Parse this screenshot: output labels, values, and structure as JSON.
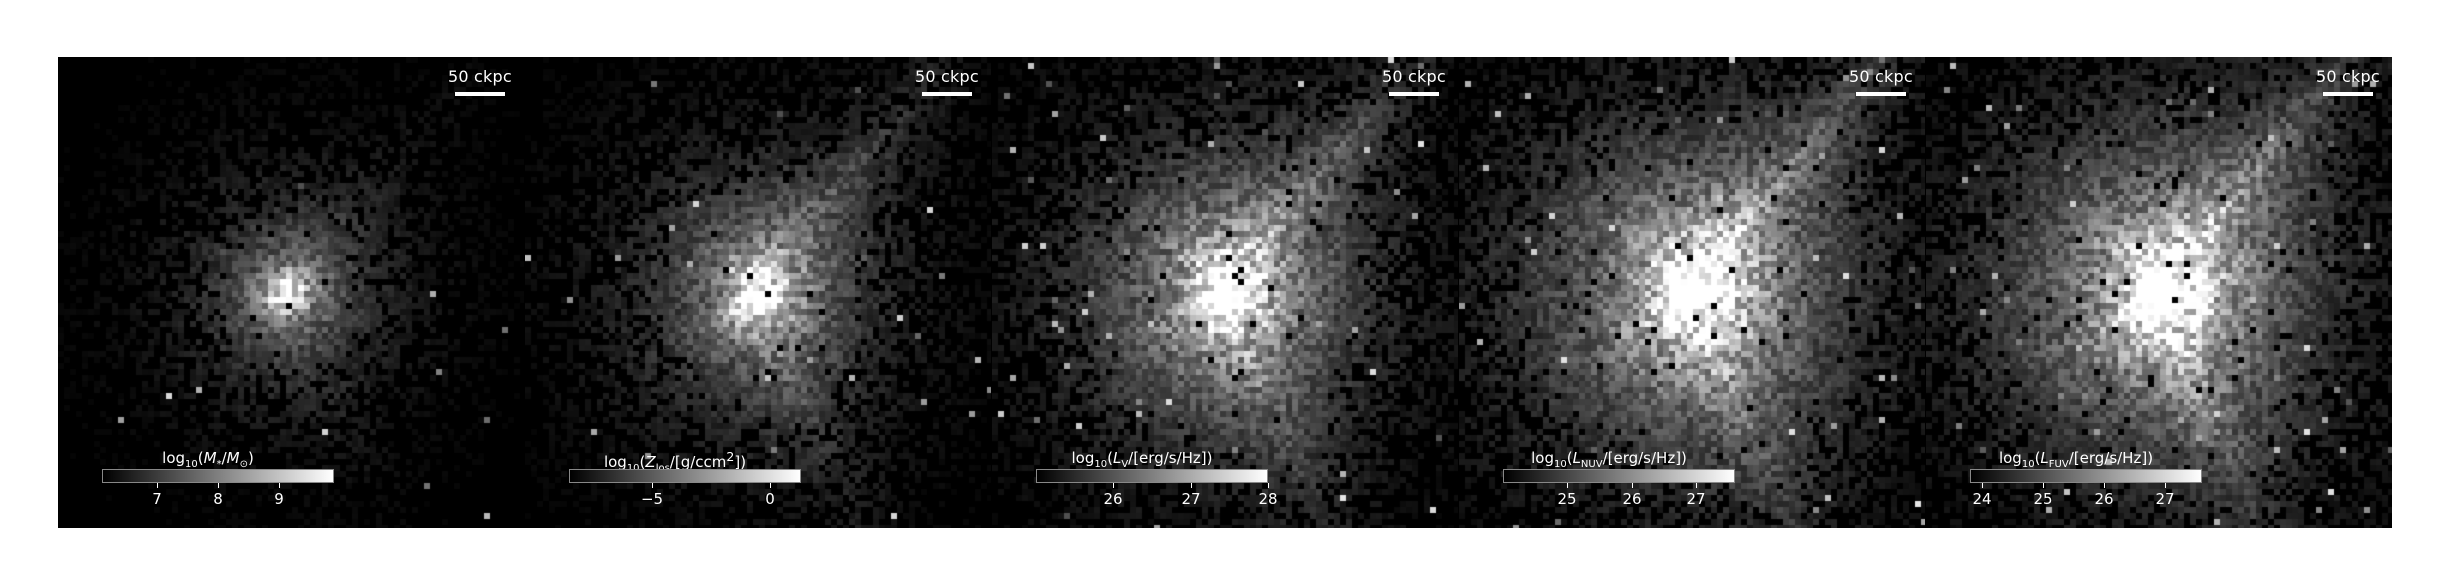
{
  "scalebar_label": "50 ckpc",
  "panels": [
    {
      "cbar_label_html": "log<sub>10</sub>(<i>M</i><sub>*</sub>/<i>M</i><sub>&#8857;</sub>)",
      "colorbar_range": [
        6.1,
        9.9
      ],
      "ticks": [
        {
          "value": 7,
          "label": "7"
        },
        {
          "value": 8,
          "label": "8"
        },
        {
          "value": 9,
          "label": "9"
        }
      ],
      "noise": 0.06,
      "core": 1.0,
      "halo": 0.45,
      "spread": 0.35,
      "streams": 0.1
    },
    {
      "cbar_label_html": "log<sub>10</sub>(<i>Z</i><sub>los</sub>/[g/ccm<sup>2</sup>])",
      "colorbar_range": [
        -8.5,
        1.3
      ],
      "ticks": [
        {
          "value": -5,
          "label": "−5"
        },
        {
          "value": 0,
          "label": "0"
        }
      ],
      "noise": 0.12,
      "core": 1.0,
      "halo": 0.55,
      "spread": 0.55,
      "streams": 0.35
    },
    {
      "cbar_label_html": "log<sub>10</sub>(<i>L</i><sub>V</sub>/[erg/s/Hz])",
      "colorbar_range": [
        25.0,
        28.0
      ],
      "ticks": [
        {
          "value": 26,
          "label": "26"
        },
        {
          "value": 27,
          "label": "27"
        },
        {
          "value": 28,
          "label": "28"
        }
      ],
      "noise": 0.18,
      "core": 1.0,
      "halo": 0.75,
      "spread": 0.7,
      "streams": 0.45
    },
    {
      "cbar_label_html": "log<sub>10</sub>(<i>L</i><sub>NUV</sub>/[erg/s/Hz])",
      "colorbar_range": [
        24.0,
        27.6
      ],
      "ticks": [
        {
          "value": 25,
          "label": "25"
        },
        {
          "value": 26,
          "label": "26"
        },
        {
          "value": 27,
          "label": "27"
        }
      ],
      "noise": 0.25,
      "core": 1.0,
      "halo": 0.85,
      "spread": 0.85,
      "streams": 0.55
    },
    {
      "cbar_label_html": "log<sub>10</sub>(<i>L</i><sub>FUV</sub>/[erg/s/Hz])",
      "colorbar_range": [
        23.8,
        27.6
      ],
      "ticks": [
        {
          "value": 24,
          "label": "24"
        },
        {
          "value": 25,
          "label": "25"
        },
        {
          "value": 26,
          "label": "26"
        },
        {
          "value": 27,
          "label": "27"
        }
      ],
      "noise": 0.25,
      "core": 1.0,
      "halo": 0.85,
      "spread": 0.85,
      "streams": 0.55
    }
  ]
}
